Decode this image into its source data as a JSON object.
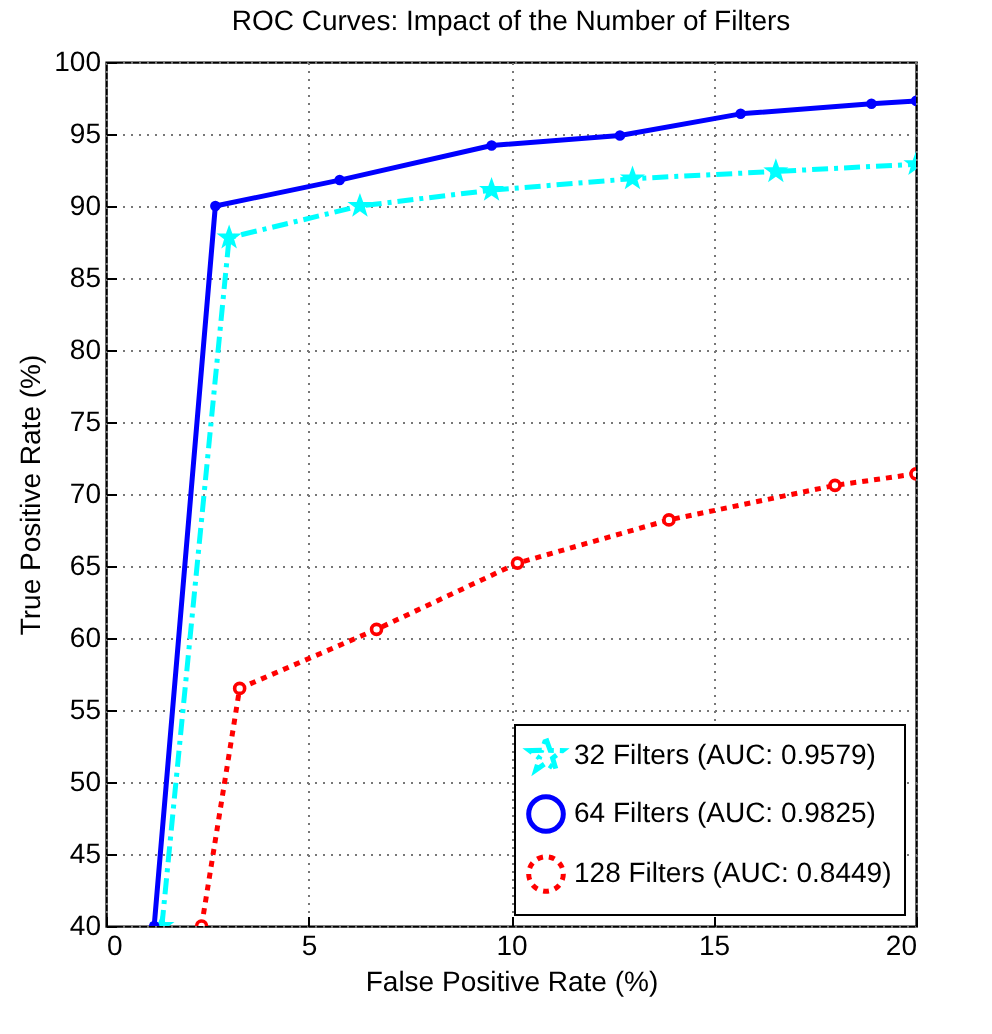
{
  "chart_data": {
    "type": "line",
    "title": "ROC Curves: Impact of the Number of Filters",
    "xlabel": "False Positive Rate (%)",
    "ylabel": "True Positive Rate (%)",
    "xlim": [
      0,
      20
    ],
    "xticks": [
      0,
      5,
      10,
      15,
      20
    ],
    "ylim": [
      40,
      100
    ],
    "yticks": [
      40,
      45,
      50,
      55,
      60,
      65,
      70,
      75,
      80,
      85,
      90,
      95,
      100
    ],
    "grid": true,
    "legend": "bottom right",
    "series": [
      {
        "name": "32 Filters (AUC: 0.9579)",
        "color": "#00ffff",
        "line_style": "dashdot",
        "marker": "star",
        "x": [
          1.38,
          3.04,
          6.27,
          9.52,
          13.0,
          16.54,
          20
        ],
        "values": [
          40,
          87.8,
          90.0,
          91.1,
          91.9,
          92.4,
          92.9
        ]
      },
      {
        "name": "64 Filters (AUC: 0.9825)",
        "color": "#0000ff",
        "line_style": "solid",
        "marker": "circle",
        "x": [
          1.19,
          2.7,
          5.77,
          9.52,
          12.69,
          15.67,
          18.9,
          20
        ],
        "values": [
          40,
          90,
          91.8,
          94.2,
          94.9,
          96.4,
          97.1,
          97.3
        ]
      },
      {
        "name": "128 Filters (AUC: 0.8449)",
        "color": "#ff0000",
        "line_style": "dotted",
        "marker": "circle",
        "x": [
          2.36,
          3.3,
          6.68,
          10.16,
          13.9,
          18.0,
          20
        ],
        "values": [
          40,
          56.5,
          60.6,
          65.2,
          68.2,
          70.6,
          71.4
        ]
      }
    ]
  }
}
